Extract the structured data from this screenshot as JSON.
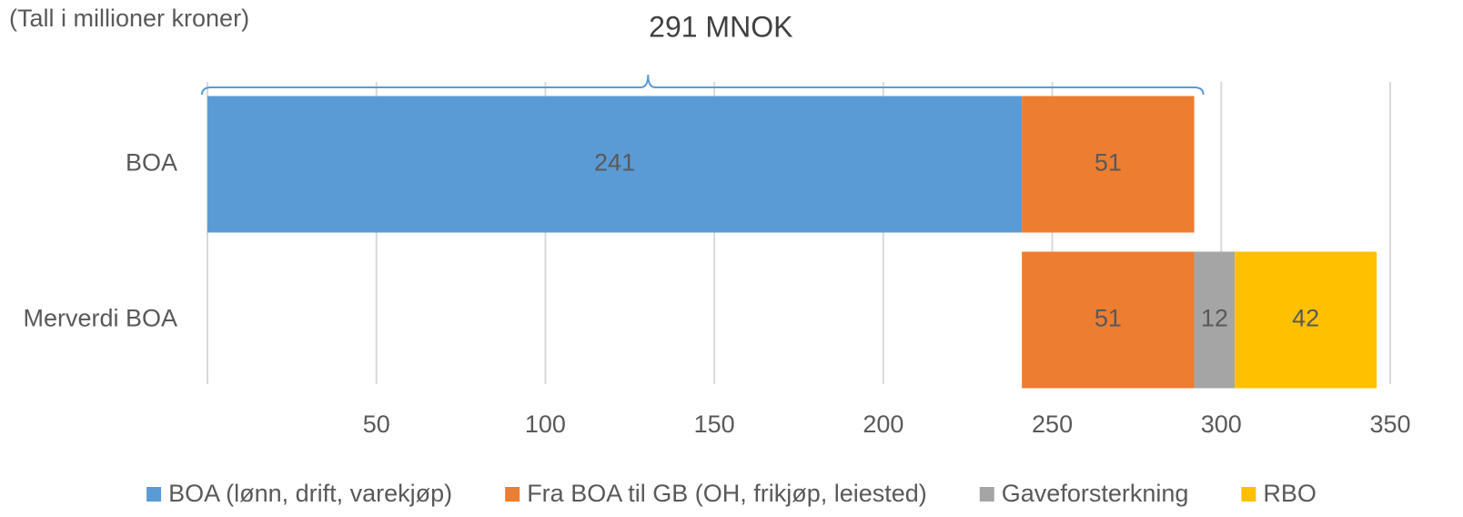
{
  "chart_data": {
    "type": "stacked-barh",
    "subtitle": "(Tall i millioner kroner)",
    "annotation": "291 MNOK",
    "categories": [
      "BOA",
      "Merverdi BOA"
    ],
    "series": [
      {
        "color": "none",
        "values": [
          null,
          241
        ]
      },
      {
        "name": "BOA (lønn, drift, varekjøp)",
        "color": "#5b9bd5",
        "values": [
          241,
          null
        ]
      },
      {
        "name": "Fra BOA til GB (OH, frikjøp, leiested)",
        "color": "#ed7d31",
        "values": [
          51,
          51
        ]
      },
      {
        "name": "Gaveforsterkning",
        "color": "#a5a5a5",
        "values": [
          null,
          12
        ]
      },
      {
        "name": "RBO",
        "color": "#ffc000",
        "values": [
          null,
          42
        ]
      }
    ],
    "xlim": [
      0,
      350
    ],
    "xticks": [
      50,
      100,
      150,
      200,
      250,
      300,
      350
    ],
    "grid": true
  }
}
